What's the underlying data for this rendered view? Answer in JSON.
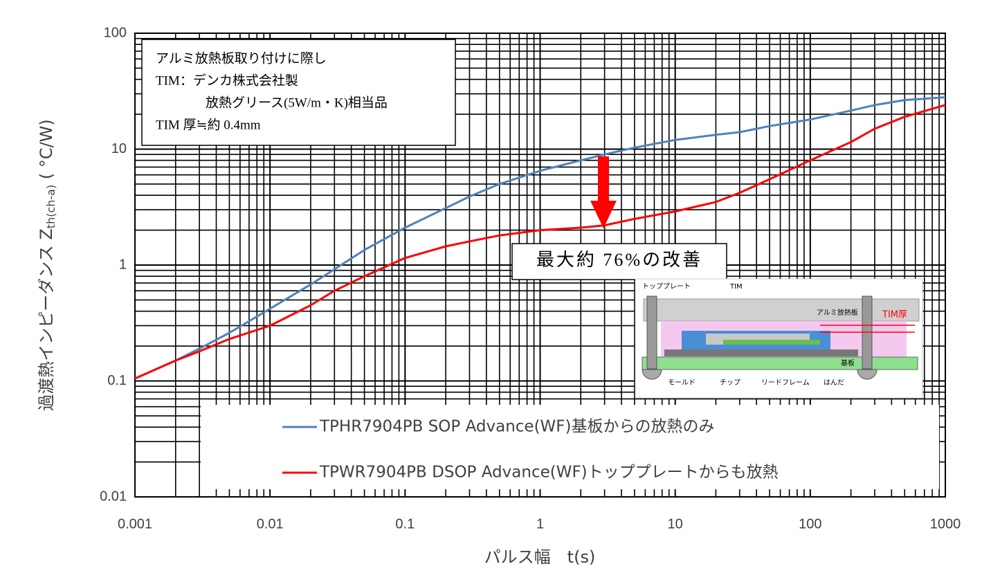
{
  "chart_data": {
    "type": "line",
    "log_x": true,
    "log_y": true,
    "grid": true,
    "x_label": "パルス幅　t(s)",
    "y_label": "過渡熱インピーダンス Z",
    "y_label_sub": "th(ch-a)",
    "y_label_unit": " ( °C/W)",
    "xlim": [
      0.001,
      1000
    ],
    "xticks": [
      0.001,
      0.01,
      0.1,
      1,
      10,
      100,
      1000
    ],
    "ylim": [
      0.01,
      100
    ],
    "yticks": [
      0.01,
      0.1,
      1,
      10,
      100
    ],
    "x": [
      0.001,
      0.002,
      0.003,
      0.005,
      0.01,
      0.02,
      0.03,
      0.05,
      0.1,
      0.2,
      0.3,
      0.5,
      1,
      2,
      3,
      5,
      10,
      20,
      30,
      50,
      100,
      200,
      300,
      500,
      1000
    ],
    "series": [
      {
        "name": "TPHR7904PB  SOP Advance(WF)基板からの放熱のみ",
        "color": "#4f81bd",
        "values": [
          0.105,
          0.15,
          0.19,
          0.26,
          0.42,
          0.68,
          0.92,
          1.35,
          2.1,
          3.1,
          3.9,
          5.0,
          6.5,
          8.0,
          9.0,
          10.3,
          12,
          13.3,
          14,
          15.8,
          18,
          21.5,
          24,
          26.5,
          28
        ]
      },
      {
        "name": "TPWR7904PB  DSOP Advance(WF)トッププレートからも放熱",
        "color": "#ff0000",
        "values": [
          0.105,
          0.15,
          0.18,
          0.23,
          0.3,
          0.45,
          0.6,
          0.8,
          1.15,
          1.45,
          1.6,
          1.8,
          2.0,
          2.1,
          2.2,
          2.5,
          2.9,
          3.5,
          4.2,
          5.5,
          8,
          11.5,
          15,
          19,
          24
        ]
      }
    ],
    "annotation": [
      "アルミ放熱板取り付けに際し",
      "TIM：デンカ株式会社製",
      "放熱グリース(5W/m・K)相当品",
      "TIM 厚≒約 0.4mm"
    ],
    "improvement_label": "最大約 76%の改善",
    "inset_labels": [
      "トッププレート",
      "TIM",
      "アルミ放熱板",
      "TIM厚",
      "基板",
      "モールド",
      "チップ",
      "リードフレーム",
      "はんだ"
    ]
  }
}
